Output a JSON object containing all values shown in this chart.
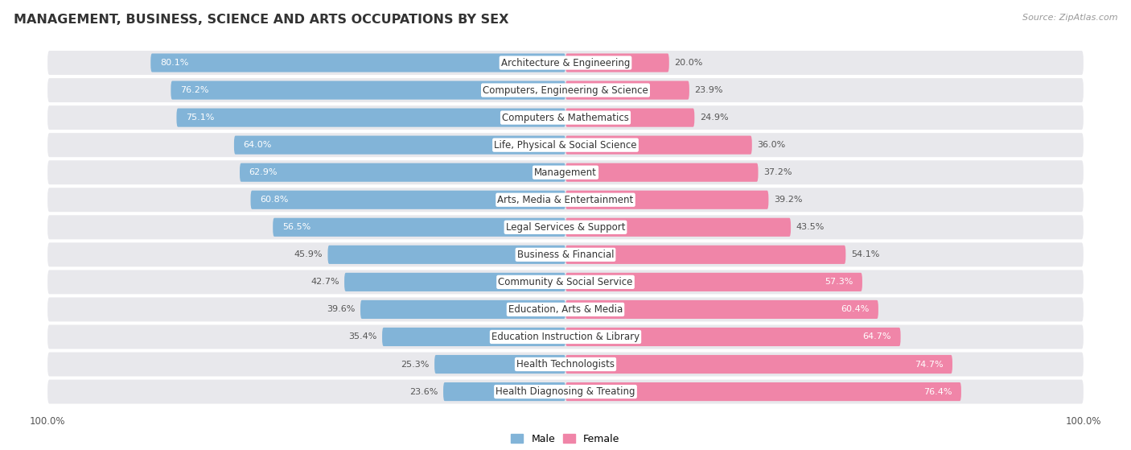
{
  "title": "MANAGEMENT, BUSINESS, SCIENCE AND ARTS OCCUPATIONS BY SEX",
  "source": "Source: ZipAtlas.com",
  "categories": [
    "Architecture & Engineering",
    "Computers, Engineering & Science",
    "Computers & Mathematics",
    "Life, Physical & Social Science",
    "Management",
    "Arts, Media & Entertainment",
    "Legal Services & Support",
    "Business & Financial",
    "Community & Social Service",
    "Education, Arts & Media",
    "Education Instruction & Library",
    "Health Technologists",
    "Health Diagnosing & Treating"
  ],
  "male": [
    80.1,
    76.2,
    75.1,
    64.0,
    62.9,
    60.8,
    56.5,
    45.9,
    42.7,
    39.6,
    35.4,
    25.3,
    23.6
  ],
  "female": [
    20.0,
    23.9,
    24.9,
    36.0,
    37.2,
    39.2,
    43.5,
    54.1,
    57.3,
    60.4,
    64.7,
    74.7,
    76.4
  ],
  "male_color": "#82b4d8",
  "female_color": "#f085a8",
  "row_bg_color": "#e8e8ec",
  "white_bg": "#ffffff",
  "title_fontsize": 11.5,
  "label_fontsize": 8.5,
  "value_fontsize": 8.0,
  "legend_fontsize": 9,
  "source_fontsize": 8,
  "axis_label_fontsize": 8.5
}
